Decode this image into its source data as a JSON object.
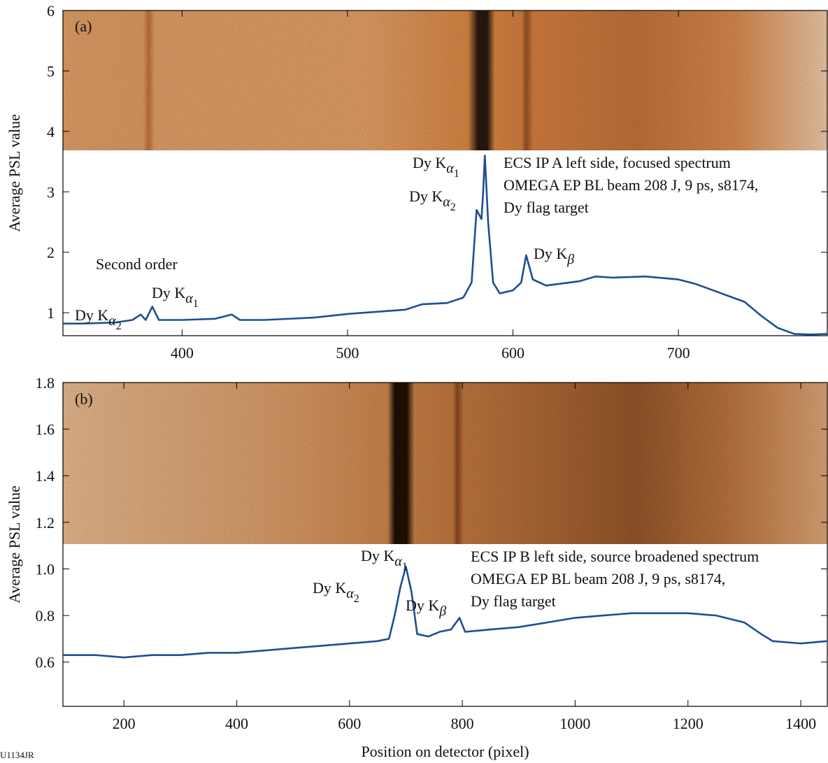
{
  "chart_data": [
    {
      "type": "line",
      "panel_label": "(a)",
      "ylabel": "Average PSL value",
      "xlim": [
        328,
        790
      ],
      "ylim": [
        0.62,
        6
      ],
      "xticks": [
        400,
        500,
        600,
        700
      ],
      "yticks": [
        1,
        2,
        3,
        4,
        5,
        6
      ],
      "x": [
        328,
        340,
        360,
        370,
        375,
        378,
        382,
        386,
        400,
        420,
        430,
        435,
        450,
        480,
        500,
        520,
        535,
        545,
        560,
        570,
        575,
        578,
        580,
        581,
        582,
        583,
        585,
        588,
        592,
        600,
        605,
        608,
        612,
        620,
        640,
        650,
        660,
        680,
        700,
        710,
        720,
        730,
        740,
        750,
        760,
        770,
        780,
        790
      ],
      "series": [
        {
          "color": "#1f4e96",
          "values": [
            0.82,
            0.82,
            0.84,
            0.88,
            0.97,
            0.88,
            1.1,
            0.88,
            0.88,
            0.9,
            0.97,
            0.88,
            0.88,
            0.92,
            0.98,
            1.02,
            1.05,
            1.14,
            1.16,
            1.25,
            1.5,
            2.7,
            2.6,
            2.55,
            3.0,
            3.6,
            2.5,
            1.5,
            1.32,
            1.37,
            1.5,
            1.95,
            1.55,
            1.45,
            1.52,
            1.6,
            1.58,
            1.6,
            1.55,
            1.48,
            1.38,
            1.28,
            1.18,
            0.95,
            0.75,
            0.65,
            0.64,
            0.65
          ]
        }
      ],
      "annotations": [
        {
          "text": "Dy K",
          "sub": "α",
          "subsub": "1"
        },
        {
          "text": "Dy K",
          "sub": "α",
          "subsub": "2"
        },
        {
          "text": "Dy K",
          "sub": "β"
        },
        {
          "text": "Second order"
        },
        {
          "text": "Dy K",
          "sub": "α",
          "subsub": "2"
        },
        {
          "text": "Dy K",
          "sub": "α",
          "subsub": "1"
        }
      ],
      "note": [
        "ECS IP A left side, focused spectrum",
        "OMEGA EP BL beam 208 J, 9 ps, s8174,",
        "Dy flag target"
      ]
    },
    {
      "type": "line",
      "panel_label": "(b)",
      "ylabel": "Average PSL  value",
      "xlabel": "Position on detector (pixel)",
      "xlim": [
        92,
        1447
      ],
      "ylim": [
        0.41,
        1.8
      ],
      "xticks": [
        200,
        400,
        600,
        800,
        1000,
        1200,
        1400
      ],
      "yticks": [
        0.6,
        0.8,
        {
          "value": 1.0,
          "label": "1.0"
        },
        1.2,
        1.4,
        1.6,
        1.8
      ],
      "x": [
        92,
        150,
        200,
        250,
        300,
        350,
        400,
        450,
        500,
        550,
        600,
        650,
        670,
        680,
        690,
        700,
        710,
        720,
        740,
        760,
        780,
        795,
        805,
        850,
        900,
        950,
        1000,
        1050,
        1100,
        1150,
        1200,
        1250,
        1300,
        1330,
        1350,
        1400,
        1447
      ],
      "series": [
        {
          "color": "#1f4e96",
          "values": [
            0.63,
            0.63,
            0.62,
            0.63,
            0.63,
            0.64,
            0.64,
            0.65,
            0.66,
            0.67,
            0.68,
            0.69,
            0.7,
            0.8,
            0.92,
            1.01,
            0.9,
            0.72,
            0.71,
            0.73,
            0.74,
            0.79,
            0.73,
            0.74,
            0.75,
            0.77,
            0.79,
            0.8,
            0.81,
            0.81,
            0.81,
            0.8,
            0.77,
            0.72,
            0.69,
            0.68,
            0.69
          ]
        }
      ],
      "annotations": [
        {
          "text": "Dy K",
          "sub": "α",
          "subsub": "1"
        },
        {
          "text": "Dy K",
          "sub": "α",
          "subsub": "2"
        },
        {
          "text": "Dy K",
          "sub": "β"
        }
      ],
      "note": [
        "ECS IP B left side, source broadened spectrum",
        "OMEGA EP BL beam 208 J, 9 ps, s8174,",
        "Dy flag target"
      ]
    }
  ],
  "footer": "U1134JR"
}
